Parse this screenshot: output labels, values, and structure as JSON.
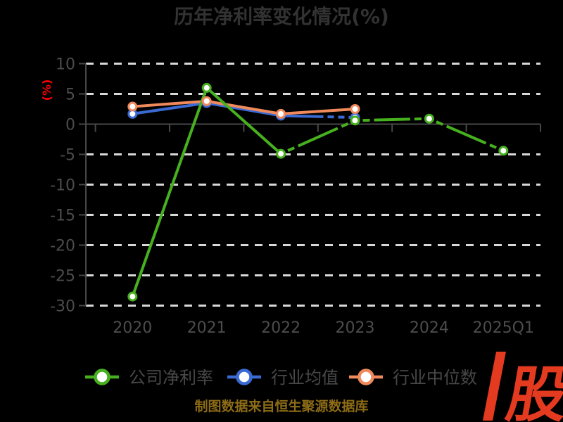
{
  "title": "历年净利率变化情况(%)",
  "y_axis_label": "(%)",
  "source_note": "制图数据来自恒生聚源数据库",
  "logo": {
    "text": "股",
    "color": "#e43a20"
  },
  "colors": {
    "background": "#000000",
    "title": "#323232",
    "axis_text": "#4c4c4c",
    "axis_line": "#474747",
    "grid": "#d8d8d8",
    "legend_text": "#484848",
    "y_label": "#ff0000",
    "source_text": "#8d6c16"
  },
  "chart_data": {
    "type": "line",
    "title": "历年净利率变化情况(%)",
    "ylabel": "(%)",
    "categories": [
      "2020",
      "2021",
      "2022",
      "2023",
      "2024",
      "2025Q1"
    ],
    "yticks": [
      10,
      5,
      0,
      -5,
      -10,
      -15,
      -20,
      -25,
      -30
    ],
    "ylim": [
      -30,
      10
    ],
    "grid": "horizontal-dashed",
    "legend_position": "bottom",
    "series": [
      {
        "name": "公司净利率",
        "color": "#46b01e",
        "marker": "white-circle",
        "values": [
          -28.5,
          6.0,
          -4.9,
          0.6,
          0.9,
          -4.4
        ]
      },
      {
        "name": "行业均值",
        "color": "#3a6ad4",
        "marker": "white-circle",
        "values": [
          1.7,
          3.5,
          1.4,
          1.1,
          null,
          null
        ]
      },
      {
        "name": "行业中位数",
        "color": "#f08a5c",
        "marker": "white-circle",
        "values": [
          2.9,
          3.8,
          1.7,
          2.5,
          null,
          null
        ]
      }
    ]
  }
}
